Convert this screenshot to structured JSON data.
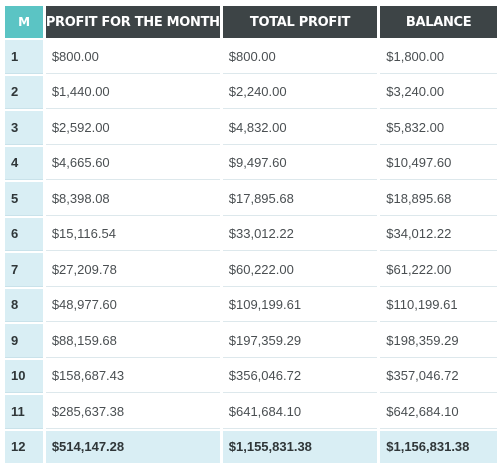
{
  "table": {
    "headers": {
      "month": "M",
      "profit_month": "PROFIT FOR THE MONTH",
      "total_profit": "TOTAL PROFIT",
      "balance": "BALANCE"
    },
    "rows": [
      {
        "m": "1",
        "profit": "$800.00",
        "total": "$800.00",
        "balance": "$1,800.00"
      },
      {
        "m": "2",
        "profit": "$1,440.00",
        "total": "$2,240.00",
        "balance": "$3,240.00"
      },
      {
        "m": "3",
        "profit": "$2,592.00",
        "total": "$4,832.00",
        "balance": "$5,832.00"
      },
      {
        "m": "4",
        "profit": "$4,665.60",
        "total": "$9,497.60",
        "balance": "$10,497.60"
      },
      {
        "m": "5",
        "profit": "$8,398.08",
        "total": "$17,895.68",
        "balance": "$18,895.68"
      },
      {
        "m": "6",
        "profit": "$15,116.54",
        "total": "$33,012.22",
        "balance": "$34,012.22"
      },
      {
        "m": "7",
        "profit": "$27,209.78",
        "total": "$60,222.00",
        "balance": "$61,222.00"
      },
      {
        "m": "8",
        "profit": "$48,977.60",
        "total": "$109,199.61",
        "balance": "$110,199.61"
      },
      {
        "m": "9",
        "profit": "$88,159.68",
        "total": "$197,359.29",
        "balance": "$198,359.29"
      },
      {
        "m": "10",
        "profit": "$158,687.43",
        "total": "$356,046.72",
        "balance": "$357,046.72"
      },
      {
        "m": "11",
        "profit": "$285,637.38",
        "total": "$641,684.10",
        "balance": "$642,684.10"
      },
      {
        "m": "12",
        "profit": "$514,147.28",
        "total": "$1,155,831.38",
        "balance": "$1,156,831.38"
      }
    ]
  },
  "colors": {
    "header_dark": "#3d4446",
    "header_accent": "#5bc4c4",
    "highlight_row": "#d9eef4"
  }
}
